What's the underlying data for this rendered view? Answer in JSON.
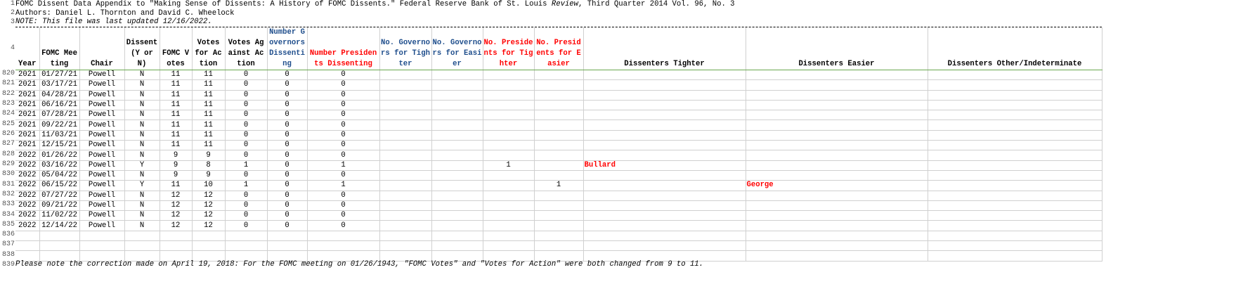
{
  "title_lines": {
    "line1_pre": "FOMC Dissent Data Appendix to \"Making Sense of Dissents: A History of FOMC Dissents.\" Federal Reserve Bank of St. Louis ",
    "line1_italic": "Review",
    "line1_post": ", Third Quarter 2014 Vol. 96, No. 3",
    "line2": "Authors: Daniel L. Thornton and David C. Wheelock",
    "line3": "NOTE: This file was last updated 12/16/2022."
  },
  "row_numbers": {
    "r1": "1",
    "r2": "2",
    "r3": "3",
    "r4": "4",
    "r836": "836",
    "r837": "837",
    "r838": "838",
    "r839": "839"
  },
  "headers": [
    {
      "label": "Year",
      "color": "black"
    },
    {
      "label": "FOMC Meeting",
      "color": "black"
    },
    {
      "label": "Chair",
      "color": "black"
    },
    {
      "label": "Dissent (Y or N)",
      "color": "black"
    },
    {
      "label": "FOMC Votes",
      "color": "black"
    },
    {
      "label": "Votes for Action",
      "color": "black"
    },
    {
      "label": "Votes Against Action",
      "color": "black"
    },
    {
      "label": "Number Governors Dissenting",
      "color": "blue"
    },
    {
      "label": "Number Presidents Dissenting",
      "color": "red"
    },
    {
      "label": "No. Governors for Tighter",
      "color": "blue"
    },
    {
      "label": "No. Governors for Easier",
      "color": "blue"
    },
    {
      "label": "No. Presidents for Tighter",
      "color": "red"
    },
    {
      "label": "No. Presidents for Easier",
      "color": "red"
    },
    {
      "label": "Dissenters Tighter",
      "color": "black"
    },
    {
      "label": "Dissenters Easier",
      "color": "black"
    },
    {
      "label": "Dissenters Other/Indeterminate",
      "color": "black"
    }
  ],
  "rows": [
    {
      "n": "820",
      "c": [
        "2021",
        "01/27/21",
        "Powell",
        "N",
        "11",
        "11",
        "0",
        "0",
        "0",
        "",
        "",
        "",
        "",
        "",
        "",
        ""
      ]
    },
    {
      "n": "821",
      "c": [
        "2021",
        "03/17/21",
        "Powell",
        "N",
        "11",
        "11",
        "0",
        "0",
        "0",
        "",
        "",
        "",
        "",
        "",
        "",
        ""
      ]
    },
    {
      "n": "822",
      "c": [
        "2021",
        "04/28/21",
        "Powell",
        "N",
        "11",
        "11",
        "0",
        "0",
        "0",
        "",
        "",
        "",
        "",
        "",
        "",
        ""
      ]
    },
    {
      "n": "823",
      "c": [
        "2021",
        "06/16/21",
        "Powell",
        "N",
        "11",
        "11",
        "0",
        "0",
        "0",
        "",
        "",
        "",
        "",
        "",
        "",
        ""
      ]
    },
    {
      "n": "824",
      "c": [
        "2021",
        "07/28/21",
        "Powell",
        "N",
        "11",
        "11",
        "0",
        "0",
        "0",
        "",
        "",
        "",
        "",
        "",
        "",
        ""
      ]
    },
    {
      "n": "825",
      "c": [
        "2021",
        "09/22/21",
        "Powell",
        "N",
        "11",
        "11",
        "0",
        "0",
        "0",
        "",
        "",
        "",
        "",
        "",
        "",
        ""
      ]
    },
    {
      "n": "826",
      "c": [
        "2021",
        "11/03/21",
        "Powell",
        "N",
        "11",
        "11",
        "0",
        "0",
        "0",
        "",
        "",
        "",
        "",
        "",
        "",
        ""
      ]
    },
    {
      "n": "827",
      "c": [
        "2021",
        "12/15/21",
        "Powell",
        "N",
        "11",
        "11",
        "0",
        "0",
        "0",
        "",
        "",
        "",
        "",
        "",
        "",
        ""
      ]
    },
    {
      "n": "828",
      "c": [
        "2022",
        "01/26/22",
        "Powell",
        "N",
        "9",
        "9",
        "0",
        "0",
        "0",
        "",
        "",
        "",
        "",
        "",
        "",
        ""
      ]
    },
    {
      "n": "829",
      "c": [
        "2022",
        "03/16/22",
        "Powell",
        "Y",
        "9",
        "8",
        "1",
        "0",
        "1",
        "",
        "",
        "1",
        "",
        "Bullard",
        "",
        ""
      ]
    },
    {
      "n": "830",
      "c": [
        "2022",
        "05/04/22",
        "Powell",
        "N",
        "9",
        "9",
        "0",
        "0",
        "0",
        "",
        "",
        "",
        "",
        "",
        "",
        ""
      ]
    },
    {
      "n": "831",
      "c": [
        "2022",
        "06/15/22",
        "Powell",
        "Y",
        "11",
        "10",
        "1",
        "0",
        "1",
        "",
        "",
        "",
        "1",
        "",
        "George",
        ""
      ]
    },
    {
      "n": "832",
      "c": [
        "2022",
        "07/27/22",
        "Powell",
        "N",
        "12",
        "12",
        "0",
        "0",
        "0",
        "",
        "",
        "",
        "",
        "",
        "",
        ""
      ]
    },
    {
      "n": "833",
      "c": [
        "2022",
        "09/21/22",
        "Powell",
        "N",
        "12",
        "12",
        "0",
        "0",
        "0",
        "",
        "",
        "",
        "",
        "",
        "",
        ""
      ]
    },
    {
      "n": "834",
      "c": [
        "2022",
        "11/02/22",
        "Powell",
        "N",
        "12",
        "12",
        "0",
        "0",
        "0",
        "",
        "",
        "",
        "",
        "",
        "",
        ""
      ]
    },
    {
      "n": "835",
      "c": [
        "2022",
        "12/14/22",
        "Powell",
        "N",
        "12",
        "12",
        "0",
        "0",
        "0",
        "",
        "",
        "",
        "",
        "",
        "",
        ""
      ]
    }
  ],
  "footnote": "Please note the correction made on April 19, 2018: For the FOMC meeting on 01/26/1943, \"FOMC Votes\" and \"Votes for Action\" were both changed from 9 to 11.",
  "colors": {
    "blue": "#1f4e8c",
    "red": "#ff0000",
    "header_border": "#6aa84f"
  }
}
